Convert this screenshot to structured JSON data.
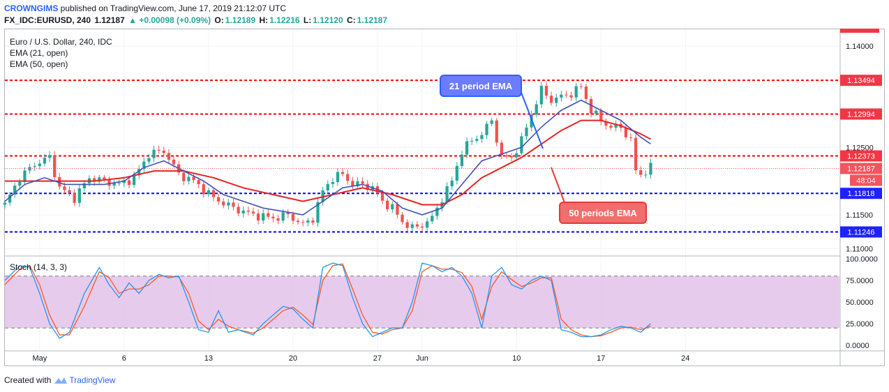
{
  "header": {
    "author": "CROWNGIMS",
    "published": "published on TradingView.com, June 17, 2019 21:12:07 UTC",
    "symbol": "FX_IDC:EURUSD, 240",
    "last": "1.12187",
    "change": "▲ +0.00098 (+0.09%)",
    "o_label": "O:",
    "o": "1.12189",
    "h_label": "H:",
    "h": "1.12216",
    "l_label": "L:",
    "l": "1.12120",
    "c_label": "C:",
    "c": "1.12187"
  },
  "legend": {
    "title": "Euro / U.S. Dollar, 240, IDC",
    "ema21": "EMA (21, open)",
    "ema50": "EMA (50, open)",
    "stoch": "Stoch (14, 3, 3)"
  },
  "annotations": {
    "ema21_callout": "21 period EMA",
    "ema50_callout": "50 periods EMA"
  },
  "footer": {
    "created_with": "Created with",
    "brand": "TradingView"
  },
  "colors": {
    "up": "#26a69a",
    "down": "#ef5350",
    "ema21": "#3f51b5",
    "ema50": "#e52222",
    "resistance": "#ff0000",
    "support": "#0000ff",
    "stoch_k": "#2196f3",
    "stoch_d": "#ff5722",
    "stoch_band": "#e1bee7"
  },
  "chart_data": [
    {
      "type": "candlestick",
      "title": "Euro / U.S. Dollar, 240, IDC",
      "ylim": [
        1.109,
        1.1425
      ],
      "y_ticks": [
        "1.14000",
        "1.12500",
        "1.11500",
        "1.11000"
      ],
      "x_ticks": [
        "May",
        "6",
        "13",
        "20",
        "27",
        "Jun",
        "10",
        "17",
        "24"
      ],
      "horizontal_levels": [
        {
          "value": 1.13494,
          "label": "1.13494",
          "kind": "resistance"
        },
        {
          "value": 1.12994,
          "label": "1.12994",
          "kind": "resistance"
        },
        {
          "value": 1.12373,
          "label": "1.12373",
          "kind": "resistance"
        },
        {
          "value": 1.11818,
          "label": "1.11818",
          "kind": "support"
        },
        {
          "value": 1.11246,
          "label": "1.11246",
          "kind": "support"
        }
      ],
      "current_price": {
        "value": 1.12187,
        "label": "1.12187",
        "countdown": "48:04"
      },
      "price_path": [
        [
          0,
          1.1165
        ],
        [
          3,
          1.1205
        ],
        [
          6,
          1.1225
        ],
        [
          9,
          1.1235
        ],
        [
          11,
          1.119
        ],
        [
          14,
          1.1175
        ],
        [
          17,
          1.1205
        ],
        [
          20,
          1.12
        ],
        [
          23,
          1.1195
        ],
        [
          26,
          1.1205
        ],
        [
          29,
          1.124
        ],
        [
          32,
          1.1245
        ],
        [
          35,
          1.121
        ],
        [
          38,
          1.12
        ],
        [
          42,
          1.1175
        ],
        [
          46,
          1.116
        ],
        [
          50,
          1.115
        ],
        [
          54,
          1.1145
        ],
        [
          57,
          1.115
        ],
        [
          60,
          1.1135
        ],
        [
          62,
          1.1145
        ],
        [
          64,
          1.1185
        ],
        [
          66,
          1.1205
        ],
        [
          68,
          1.121
        ],
        [
          70,
          1.1195
        ],
        [
          72,
          1.1195
        ],
        [
          74,
          1.119
        ],
        [
          76,
          1.117
        ],
        [
          78,
          1.116
        ],
        [
          80,
          1.114
        ],
        [
          82,
          1.113
        ],
        [
          84,
          1.1135
        ],
        [
          86,
          1.1145
        ],
        [
          88,
          1.1175
        ],
        [
          90,
          1.12
        ],
        [
          92,
          1.1245
        ],
        [
          94,
          1.126
        ],
        [
          96,
          1.127
        ],
        [
          98,
          1.129
        ],
        [
          100,
          1.1235
        ],
        [
          102,
          1.1235
        ],
        [
          104,
          1.126
        ],
        [
          106,
          1.13
        ],
        [
          108,
          1.1335
        ],
        [
          110,
          1.132
        ],
        [
          112,
          1.1325
        ],
        [
          114,
          1.133
        ],
        [
          116,
          1.134
        ],
        [
          118,
          1.1305
        ],
        [
          120,
          1.129
        ],
        [
          122,
          1.128
        ],
        [
          124,
          1.128
        ],
        [
          126,
          1.126
        ],
        [
          127,
          1.1215
        ],
        [
          128,
          1.121
        ],
        [
          129,
          1.1215
        ],
        [
          130,
          1.122
        ]
      ],
      "ema21_path": [
        [
          0,
          1.117
        ],
        [
          4,
          1.1195
        ],
        [
          8,
          1.1205
        ],
        [
          12,
          1.1195
        ],
        [
          16,
          1.1195
        ],
        [
          20,
          1.1195
        ],
        [
          24,
          1.12
        ],
        [
          28,
          1.122
        ],
        [
          32,
          1.123
        ],
        [
          36,
          1.1215
        ],
        [
          40,
          1.12
        ],
        [
          44,
          1.118
        ],
        [
          48,
          1.117
        ],
        [
          52,
          1.116
        ],
        [
          56,
          1.1155
        ],
        [
          60,
          1.115
        ],
        [
          64,
          1.117
        ],
        [
          68,
          1.119
        ],
        [
          72,
          1.1195
        ],
        [
          76,
          1.1185
        ],
        [
          80,
          1.116
        ],
        [
          84,
          1.115
        ],
        [
          88,
          1.116
        ],
        [
          92,
          1.1195
        ],
        [
          96,
          1.123
        ],
        [
          100,
          1.124
        ],
        [
          104,
          1.125
        ],
        [
          108,
          1.128
        ],
        [
          112,
          1.1305
        ],
        [
          116,
          1.132
        ],
        [
          120,
          1.1305
        ],
        [
          124,
          1.129
        ],
        [
          128,
          1.1265
        ],
        [
          130,
          1.1255
        ]
      ],
      "ema50_path": [
        [
          0,
          1.12
        ],
        [
          6,
          1.12
        ],
        [
          12,
          1.12
        ],
        [
          18,
          1.12
        ],
        [
          24,
          1.1205
        ],
        [
          30,
          1.1215
        ],
        [
          36,
          1.1215
        ],
        [
          42,
          1.1205
        ],
        [
          48,
          1.119
        ],
        [
          54,
          1.118
        ],
        [
          60,
          1.117
        ],
        [
          66,
          1.118
        ],
        [
          72,
          1.119
        ],
        [
          78,
          1.118
        ],
        [
          84,
          1.1165
        ],
        [
          88,
          1.1165
        ],
        [
          92,
          1.118
        ],
        [
          96,
          1.1205
        ],
        [
          100,
          1.122
        ],
        [
          104,
          1.1235
        ],
        [
          108,
          1.1255
        ],
        [
          112,
          1.1275
        ],
        [
          116,
          1.129
        ],
        [
          120,
          1.129
        ],
        [
          124,
          1.1282
        ],
        [
          128,
          1.127
        ],
        [
          130,
          1.1262
        ]
      ]
    },
    {
      "type": "line",
      "title": "Stoch (14, 3, 3)",
      "ylim": [
        0,
        100
      ],
      "y_ticks": [
        "100.0000",
        "75.0000",
        "50.0000",
        "25.0000",
        "0.0000"
      ],
      "band": [
        20,
        80
      ],
      "k_path": [
        [
          0,
          75
        ],
        [
          3,
          92
        ],
        [
          5,
          90
        ],
        [
          7,
          60
        ],
        [
          9,
          25
        ],
        [
          11,
          8
        ],
        [
          13,
          15
        ],
        [
          16,
          60
        ],
        [
          19,
          90
        ],
        [
          21,
          70
        ],
        [
          23,
          55
        ],
        [
          25,
          72
        ],
        [
          27,
          60
        ],
        [
          29,
          75
        ],
        [
          31,
          82
        ],
        [
          33,
          78
        ],
        [
          35,
          80
        ],
        [
          37,
          50
        ],
        [
          39,
          18
        ],
        [
          41,
          15
        ],
        [
          43,
          40
        ],
        [
          45,
          15
        ],
        [
          47,
          18
        ],
        [
          50,
          12
        ],
        [
          52,
          25
        ],
        [
          54,
          35
        ],
        [
          56,
          45
        ],
        [
          58,
          42
        ],
        [
          60,
          30
        ],
        [
          62,
          20
        ],
        [
          64,
          90
        ],
        [
          66,
          95
        ],
        [
          68,
          92
        ],
        [
          70,
          55
        ],
        [
          72,
          25
        ],
        [
          74,
          10
        ],
        [
          76,
          15
        ],
        [
          78,
          20
        ],
        [
          80,
          20
        ],
        [
          82,
          50
        ],
        [
          84,
          95
        ],
        [
          86,
          92
        ],
        [
          88,
          85
        ],
        [
          90,
          90
        ],
        [
          92,
          80
        ],
        [
          94,
          60
        ],
        [
          96,
          20
        ],
        [
          98,
          80
        ],
        [
          100,
          90
        ],
        [
          102,
          70
        ],
        [
          104,
          65
        ],
        [
          106,
          75
        ],
        [
          108,
          80
        ],
        [
          110,
          75
        ],
        [
          112,
          18
        ],
        [
          114,
          15
        ],
        [
          116,
          10
        ],
        [
          118,
          10
        ],
        [
          120,
          12
        ],
        [
          122,
          18
        ],
        [
          124,
          22
        ],
        [
          126,
          20
        ],
        [
          128,
          15
        ],
        [
          130,
          25
        ]
      ],
      "d_path": [
        [
          0,
          70
        ],
        [
          3,
          88
        ],
        [
          5,
          92
        ],
        [
          7,
          70
        ],
        [
          9,
          35
        ],
        [
          11,
          12
        ],
        [
          13,
          12
        ],
        [
          16,
          45
        ],
        [
          19,
          85
        ],
        [
          21,
          78
        ],
        [
          23,
          60
        ],
        [
          25,
          65
        ],
        [
          27,
          65
        ],
        [
          29,
          70
        ],
        [
          31,
          80
        ],
        [
          33,
          80
        ],
        [
          35,
          79
        ],
        [
          37,
          60
        ],
        [
          39,
          28
        ],
        [
          41,
          18
        ],
        [
          43,
          30
        ],
        [
          45,
          22
        ],
        [
          47,
          18
        ],
        [
          50,
          14
        ],
        [
          52,
          20
        ],
        [
          54,
          30
        ],
        [
          56,
          40
        ],
        [
          58,
          44
        ],
        [
          60,
          35
        ],
        [
          62,
          24
        ],
        [
          64,
          75
        ],
        [
          66,
          92
        ],
        [
          68,
          94
        ],
        [
          70,
          65
        ],
        [
          72,
          35
        ],
        [
          74,
          15
        ],
        [
          76,
          13
        ],
        [
          78,
          18
        ],
        [
          80,
          20
        ],
        [
          82,
          40
        ],
        [
          84,
          85
        ],
        [
          86,
          92
        ],
        [
          88,
          88
        ],
        [
          90,
          88
        ],
        [
          92,
          84
        ],
        [
          94,
          68
        ],
        [
          96,
          30
        ],
        [
          98,
          68
        ],
        [
          100,
          85
        ],
        [
          102,
          76
        ],
        [
          104,
          68
        ],
        [
          106,
          72
        ],
        [
          108,
          78
        ],
        [
          110,
          78
        ],
        [
          112,
          30
        ],
        [
          114,
          18
        ],
        [
          116,
          12
        ],
        [
          118,
          10
        ],
        [
          120,
          11
        ],
        [
          122,
          15
        ],
        [
          124,
          20
        ],
        [
          126,
          21
        ],
        [
          128,
          18
        ],
        [
          130,
          22
        ]
      ]
    }
  ]
}
